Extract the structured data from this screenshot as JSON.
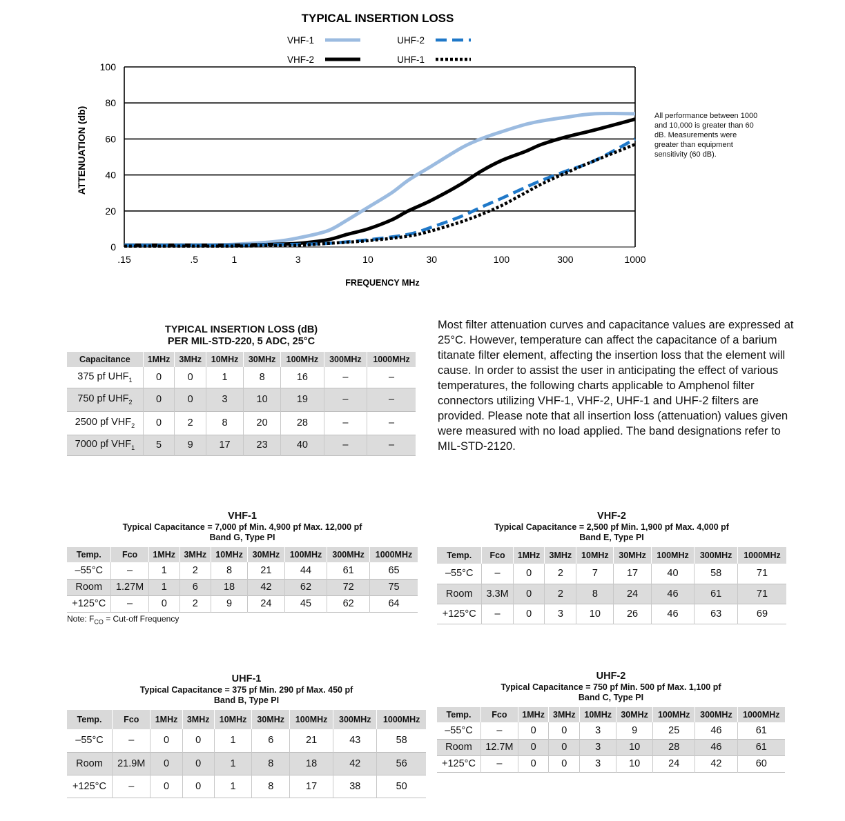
{
  "chart_data": {
    "type": "line",
    "title": "TYPICAL INSERTION LOSS",
    "xlabel": "FREQUENCY  MHz",
    "ylabel": "ATTENUATION (db)",
    "x_scale": "log",
    "xlim": [
      0.15,
      1000
    ],
    "ylim": [
      0,
      100
    ],
    "x_ticks": [
      0.15,
      0.5,
      1,
      3,
      10,
      30,
      100,
      300,
      1000
    ],
    "x_tick_labels": [
      ".15",
      ".5",
      "1",
      "3",
      "10",
      "30",
      "100",
      "300",
      "1000"
    ],
    "y_ticks": [
      0,
      20,
      40,
      60,
      80,
      100
    ],
    "grid": "horizontal",
    "legend_position": "top",
    "series": [
      {
        "name": "VHF-1",
        "color": "#9bbbe0",
        "style": "solid",
        "x": [
          0.15,
          0.5,
          1,
          2,
          3,
          5,
          7,
          10,
          15,
          20,
          30,
          50,
          70,
          100,
          150,
          200,
          300,
          500,
          1000
        ],
        "y": [
          1,
          1,
          1.5,
          3,
          5,
          9,
          15,
          22,
          30,
          37,
          45,
          55,
          60,
          64,
          68,
          70,
          72,
          74,
          74
        ]
      },
      {
        "name": "VHF-2",
        "color": "#000000",
        "style": "solid",
        "x": [
          0.15,
          0.5,
          1,
          2,
          3,
          5,
          7,
          10,
          15,
          20,
          30,
          50,
          70,
          100,
          150,
          200,
          300,
          500,
          1000
        ],
        "y": [
          1,
          1,
          1,
          1.5,
          2,
          4,
          7,
          10,
          15,
          20,
          26,
          35,
          42,
          48,
          53,
          57,
          61,
          65,
          71
        ]
      },
      {
        "name": "UHF-2",
        "color": "#1f78c8",
        "style": "dashed",
        "x": [
          0.15,
          0.5,
          1,
          3,
          5,
          10,
          20,
          30,
          50,
          70,
          100,
          150,
          200,
          300,
          500,
          1000
        ],
        "y": [
          1,
          1,
          1,
          1.5,
          2,
          4,
          7,
          11,
          17,
          22,
          27,
          33,
          37,
          42,
          48,
          60
        ]
      },
      {
        "name": "UHF-1",
        "color": "#000000",
        "style": "dotted",
        "x": [
          0.15,
          0.5,
          1,
          3,
          5,
          10,
          20,
          30,
          50,
          70,
          100,
          150,
          200,
          300,
          500,
          1000
        ],
        "y": [
          0.5,
          0.5,
          0.5,
          1,
          2,
          3.5,
          6,
          9,
          14,
          18,
          23,
          30,
          35,
          41,
          48,
          57
        ]
      }
    ]
  },
  "chart_note": "All performance between 1000 and 10,000 is greater than 60 dB. Measurements were greater than equipment sensitivity (60 dB).",
  "intro_text": "Most filter attenuation curves and capacitance values are expressed at 25°C. However, temperature can affect the capacitance of a barium titanate filter element, affecting the insertion loss that the element will cause. In order to assist the user in anticipating the effect of various temperatures, the following charts applicable to Amphenol filter connectors utilizing VHF-1, VHF-2, UHF-1 and UHF-2 filters are provided. Please note that all insertion loss (attenuation) values given were measured with no load applied. The band designations refer to MIL-STD-2120.",
  "summary_table": {
    "title_line1": "TYPICAL INSERTION LOSS (dB)",
    "title_line2": "PER MIL-STD-220, 5 ADC, 25°C",
    "headers": [
      "Capacitance",
      "1MHz",
      "3MHz",
      "10MHz",
      "30MHz",
      "100MHz",
      "300MHz",
      "1000MHz"
    ],
    "rows": [
      {
        "cap": "375 pf UHF",
        "sub": "1",
        "values": [
          "0",
          "0",
          "1",
          "8",
          "16",
          "–",
          "–"
        ]
      },
      {
        "cap": "750 pf UHF",
        "sub": "2",
        "values": [
          "0",
          "0",
          "3",
          "10",
          "19",
          "–",
          "–"
        ]
      },
      {
        "cap": "2500 pf VHF",
        "sub": "2",
        "values": [
          "0",
          "2",
          "8",
          "20",
          "28",
          "–",
          "–"
        ]
      },
      {
        "cap": "7000 pf VHF",
        "sub": "1",
        "values": [
          "5",
          "9",
          "17",
          "23",
          "40",
          "–",
          "–"
        ]
      }
    ]
  },
  "band_headers": [
    "Temp.",
    "Fco",
    "1MHz",
    "3MHz",
    "10MHz",
    "30MHz",
    "100MHz",
    "300MHz",
    "1000MHz"
  ],
  "vhf1": {
    "title": "VHF-1",
    "sub1": "Typical Capacitance = 7,000 pf   Min. 4,900 pf   Max. 12,000 pf",
    "sub2": "Band G, Type PI",
    "rows": [
      [
        "–55°C",
        "–",
        "1",
        "2",
        "8",
        "21",
        "44",
        "61",
        "65"
      ],
      [
        "Room",
        "1.27M",
        "1",
        "6",
        "18",
        "42",
        "62",
        "72",
        "75"
      ],
      [
        "+125°C",
        "–",
        "0",
        "2",
        "9",
        "24",
        "45",
        "62",
        "64"
      ]
    ],
    "note_prefix": "Note: F",
    "note_sub": "CO",
    "note_suffix": " = Cut-off Frequency"
  },
  "vhf2": {
    "title": "VHF-2",
    "sub1": "Typical Capacitance = 2,500 pf   Min. 1,900 pf   Max. 4,000 pf",
    "sub2": "Band E, Type PI",
    "rows": [
      [
        "–55°C",
        "–",
        "0",
        "2",
        "7",
        "17",
        "40",
        "58",
        "71"
      ],
      [
        "Room",
        "3.3M",
        "0",
        "2",
        "8",
        "24",
        "46",
        "61",
        "71"
      ],
      [
        "+125°C",
        "–",
        "0",
        "3",
        "10",
        "26",
        "46",
        "63",
        "69"
      ]
    ]
  },
  "uhf1": {
    "title": "UHF-1",
    "sub1": "Typical Capacitance = 375 pf   Min. 290 pf   Max. 450 pf",
    "sub2": "Band B, Type PI",
    "rows": [
      [
        "–55°C",
        "–",
        "0",
        "0",
        "1",
        "6",
        "21",
        "43",
        "58"
      ],
      [
        "Room",
        "21.9M",
        "0",
        "0",
        "1",
        "8",
        "18",
        "42",
        "56"
      ],
      [
        "+125°C",
        "–",
        "0",
        "0",
        "1",
        "8",
        "17",
        "38",
        "50"
      ]
    ]
  },
  "uhf2": {
    "title": "UHF-2",
    "sub1": "Typical Capacitance = 750 pf   Min. 500 pf   Max. 1,100 pf",
    "sub2": "Band C, Type PI",
    "rows": [
      [
        "–55°C",
        "–",
        "0",
        "0",
        "3",
        "9",
        "25",
        "46",
        "61"
      ],
      [
        "Room",
        "12.7M",
        "0",
        "0",
        "3",
        "10",
        "28",
        "46",
        "61"
      ],
      [
        "+125°C",
        "–",
        "0",
        "0",
        "3",
        "10",
        "24",
        "42",
        "60"
      ]
    ]
  }
}
